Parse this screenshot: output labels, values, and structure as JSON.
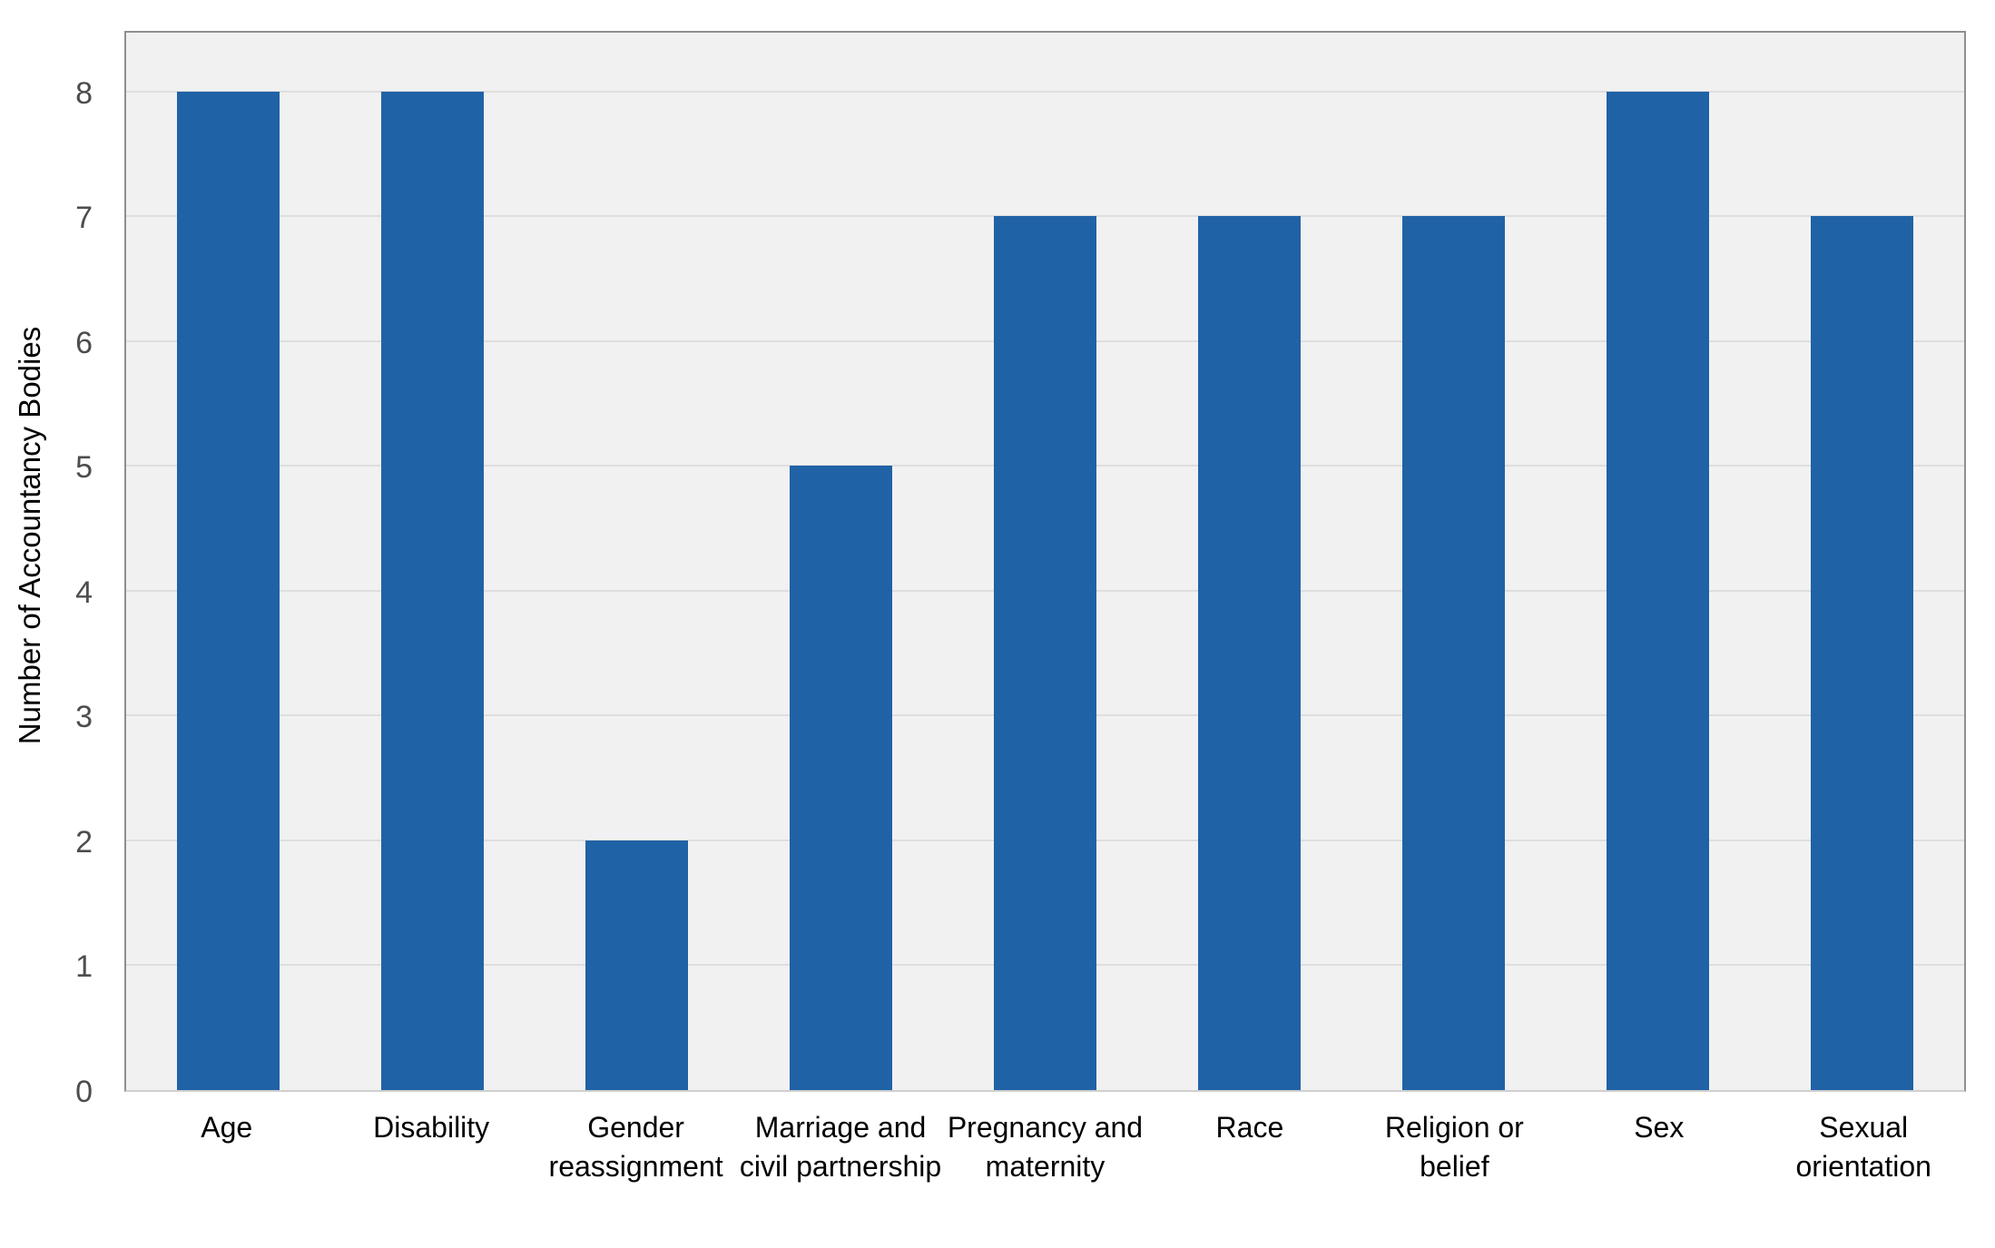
{
  "chart_data": {
    "type": "bar",
    "categories": [
      "Age",
      "Disability",
      "Gender reassignment",
      "Marriage and civil partnership",
      "Pregnancy and maternity",
      "Race",
      "Religion or belief",
      "Sex",
      "Sexual orientation"
    ],
    "values": [
      8,
      8,
      2,
      5,
      7,
      7,
      7,
      8,
      7
    ],
    "title": "",
    "xlabel": "",
    "ylabel": "Number of Accountancy Bodies",
    "ylim": [
      0,
      8.5
    ],
    "yticks": [
      0,
      1,
      2,
      3,
      4,
      5,
      6,
      7,
      8
    ],
    "grid": true,
    "legend": false,
    "colors": {
      "bar": "#2062a6",
      "plot_background": "#f1f1f1",
      "gridline": "#dedede",
      "tick_label": "#4d4d4d",
      "category_label": "#000000",
      "plot_border": "#8f8f8f"
    }
  }
}
